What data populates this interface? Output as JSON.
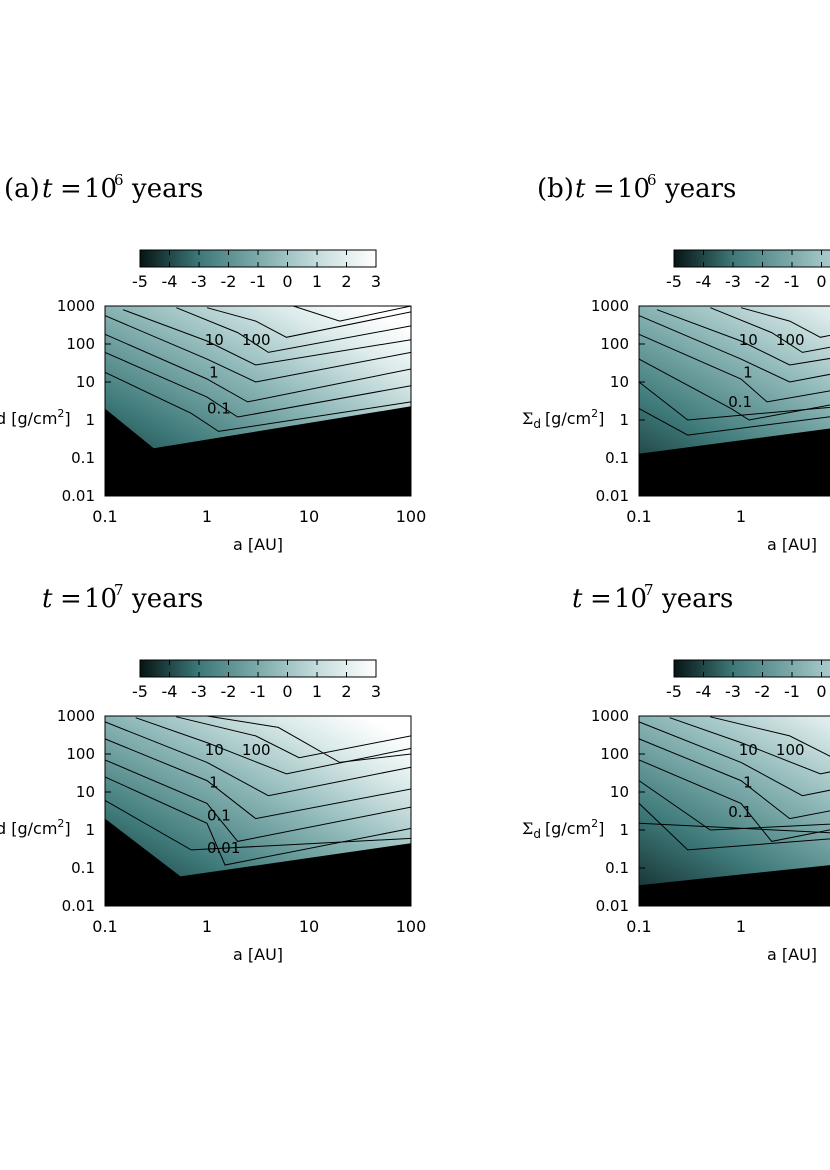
{
  "figure": {
    "cbar_ticks": [
      "-5",
      "-4",
      "-3",
      "-2",
      "-1",
      "0",
      "1",
      "2",
      "3"
    ],
    "y_ticks": [
      "1000",
      "100",
      "10",
      "1",
      "0.1",
      "0.01"
    ],
    "x_ticks": [
      "0.1",
      "1",
      "10",
      "100"
    ],
    "xlabel": "a [AU]",
    "ylabel_left": "d [g/cm",
    "ylabel_right_sym": "Σ",
    "ylabel_right_sub": "d",
    "ylabel_right_rest": "[g/cm",
    "ylabel_sup": "2",
    "ylabel_close": "]",
    "t_symbol": "t",
    "eq": "=",
    "base": "10",
    "years": "years"
  },
  "chart_data": [
    {
      "type": "heatmap",
      "panel": "a",
      "title_prefix": "(a)",
      "time_exp": "6",
      "x_range": [
        0.1,
        100
      ],
      "y_range": [
        0.01,
        1000
      ],
      "x_scale": "log",
      "y_scale": "log",
      "color_range": [
        -5,
        3
      ],
      "contour_labels": [
        "10",
        "100",
        "1",
        "0.1"
      ]
    },
    {
      "type": "heatmap",
      "panel": "b",
      "title_prefix": "(b)",
      "time_exp": "6",
      "x_range": [
        0.1,
        100
      ],
      "y_range": [
        0.01,
        1000
      ],
      "x_scale": "log",
      "y_scale": "log",
      "color_range": [
        -5,
        3
      ],
      "contour_labels": [
        "10",
        "100",
        "1",
        "0.1"
      ]
    },
    {
      "type": "heatmap",
      "panel": "c",
      "title_prefix": "",
      "time_exp": "7",
      "x_range": [
        0.1,
        100
      ],
      "y_range": [
        0.01,
        1000
      ],
      "x_scale": "log",
      "y_scale": "log",
      "color_range": [
        -5,
        3
      ],
      "contour_labels": [
        "10",
        "100",
        "1",
        "0.1",
        "0.01"
      ]
    },
    {
      "type": "heatmap",
      "panel": "d",
      "title_prefix": "",
      "time_exp": "7",
      "x_range": [
        0.1,
        100
      ],
      "y_range": [
        0.01,
        1000
      ],
      "x_scale": "log",
      "y_scale": "log",
      "color_range": [
        -5,
        3
      ],
      "contour_labels": [
        "10",
        "100",
        "1",
        "0.1"
      ]
    }
  ]
}
